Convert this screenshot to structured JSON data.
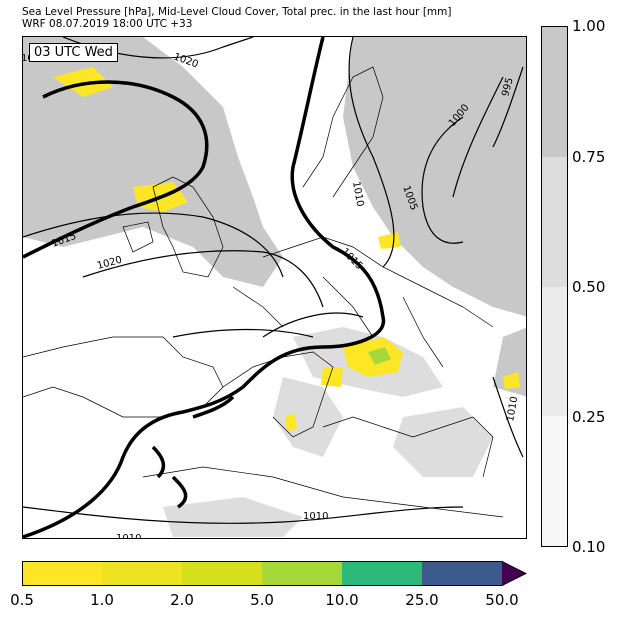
{
  "header": {
    "line1": "Sea Level Pressure [hPa], Mid-Level Cloud Cover, Total prec. in the last hour [mm]",
    "line2": "WRF 08.07.2019 18:00 UTC +33"
  },
  "map": {
    "time_label": "03 UTC Wed",
    "isobar_labels": [
      "1020",
      "1015",
      "1020",
      "1010",
      "1005",
      "1000",
      "995",
      "1015",
      "1010",
      "1010",
      "1010"
    ],
    "partial_label": "10"
  },
  "cloud_legend": {
    "ticks": [
      "1.00",
      "0.75",
      "0.50",
      "0.25",
      "0.10"
    ],
    "colors": [
      "#c8c8c8",
      "#dddddd",
      "#ececec",
      "#f7f7f7"
    ]
  },
  "precip_legend": {
    "ticks": [
      "0.5",
      "1.0",
      "2.0",
      "5.0",
      "10.0",
      "25.0",
      "50.0"
    ],
    "colors": [
      "#fde725",
      "#ede320",
      "#d6df1c",
      "#a5d838",
      "#2db97a",
      "#3b5a8e",
      "#440154"
    ]
  }
}
